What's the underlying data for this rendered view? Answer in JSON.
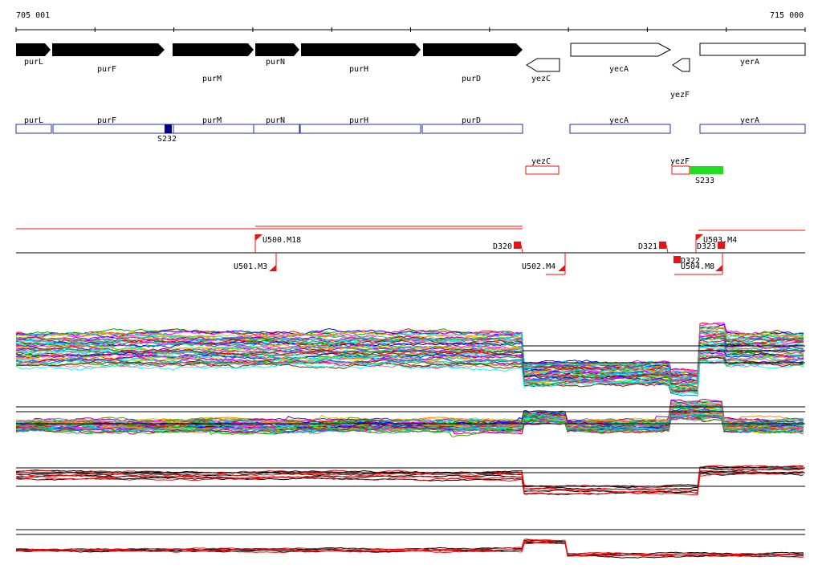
{
  "coords": {
    "start": "705 001",
    "end": "715 000"
  },
  "genes": [
    {
      "name": "purL",
      "strand": "+",
      "filled": true
    },
    {
      "name": "purF",
      "strand": "+",
      "filled": true
    },
    {
      "name": "purM",
      "strand": "+",
      "filled": true
    },
    {
      "name": "purN",
      "strand": "+",
      "filled": true
    },
    {
      "name": "purH",
      "strand": "+",
      "filled": true
    },
    {
      "name": "purD",
      "strand": "+",
      "filled": true
    },
    {
      "name": "yezC",
      "strand": "-",
      "filled": false
    },
    {
      "name": "yecA",
      "strand": "+",
      "filled": false
    },
    {
      "name": "yezF",
      "strand": "-",
      "filled": false
    },
    {
      "name": "yerA",
      "strand": "+",
      "filled": false
    }
  ],
  "annotation_blue": [
    {
      "name": "purL"
    },
    {
      "name": "purF"
    },
    {
      "name": "purM"
    },
    {
      "name": "purN"
    },
    {
      "name": "purH"
    },
    {
      "name": "purD"
    },
    {
      "name": "yecA"
    },
    {
      "name": "yerA"
    }
  ],
  "site_labels": {
    "s232": "S232",
    "s233": "S233"
  },
  "annotation_red": [
    {
      "name": "yezC"
    },
    {
      "name": "yezF"
    }
  ],
  "segments": {
    "upper": [
      {
        "name": "U500.M18"
      },
      {
        "name": "U503.M4"
      }
    ],
    "lower": [
      {
        "name": "U501.M3"
      },
      {
        "name": "U502.M4"
      },
      {
        "name": "U504.M8"
      }
    ],
    "downstream": [
      {
        "name": "D320"
      },
      {
        "name": "D321"
      },
      {
        "name": "D322"
      },
      {
        "name": "D323"
      }
    ]
  },
  "colors": {
    "gene_fill": "#000000",
    "blue_box": "#1f2fb0",
    "s232": "#000090",
    "s233": "#22dd22",
    "red": "#ee1111",
    "axis": "#000000"
  }
}
